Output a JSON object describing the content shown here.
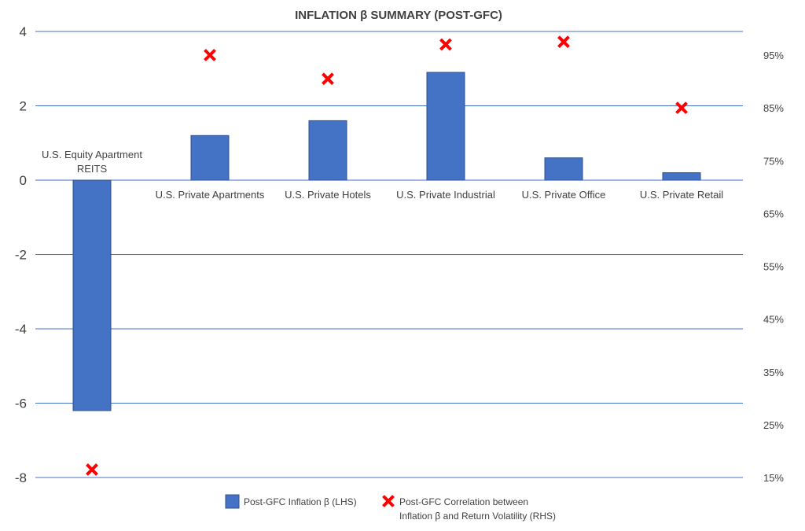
{
  "chart_data": {
    "type": "bar",
    "title": "INFLATION β SUMMARY (POST-GFC)",
    "categories": [
      [
        "U.S. Equity Apartment",
        "REITS"
      ],
      [
        "U.S. Private Apartments"
      ],
      [
        "U.S. Private Hotels"
      ],
      [
        "U.S. Private Industrial"
      ],
      [
        "U.S. Private Office"
      ],
      [
        "U.S. Private Retail"
      ]
    ],
    "series": [
      {
        "name": "Post-GFC Inflation β (LHS)",
        "type": "bar",
        "axis": "left",
        "color": "#4472c4",
        "values": [
          -6.2,
          1.2,
          1.6,
          2.9,
          0.6,
          0.2
        ]
      },
      {
        "name": "Post-GFC Correlation between Inflation β and Return Volatility (RHS)",
        "legend_lines": [
          "Post-GFC Correlation between",
          "Inflation β and Return Volatility (RHS)"
        ],
        "type": "scatter",
        "marker": "x",
        "axis": "right",
        "color": "#ff0000",
        "values": [
          0.165,
          0.95,
          0.905,
          0.97,
          0.975,
          0.85
        ]
      }
    ],
    "y_left": {
      "ylim": [
        -8,
        4
      ],
      "ticks": [
        4,
        2,
        0,
        -2,
        -4,
        -6,
        -8
      ]
    },
    "y_right": {
      "ylim": [
        0.15,
        1.0
      ],
      "ticks": [
        0.95,
        0.85,
        0.75,
        0.65,
        0.55,
        0.45,
        0.35,
        0.25,
        0.15
      ],
      "tick_labels": [
        "95%",
        "85%",
        "75%",
        "65%",
        "55%",
        "45%",
        "35%",
        "25%",
        "15%"
      ]
    },
    "grid": true,
    "legend_position": "bottom"
  }
}
